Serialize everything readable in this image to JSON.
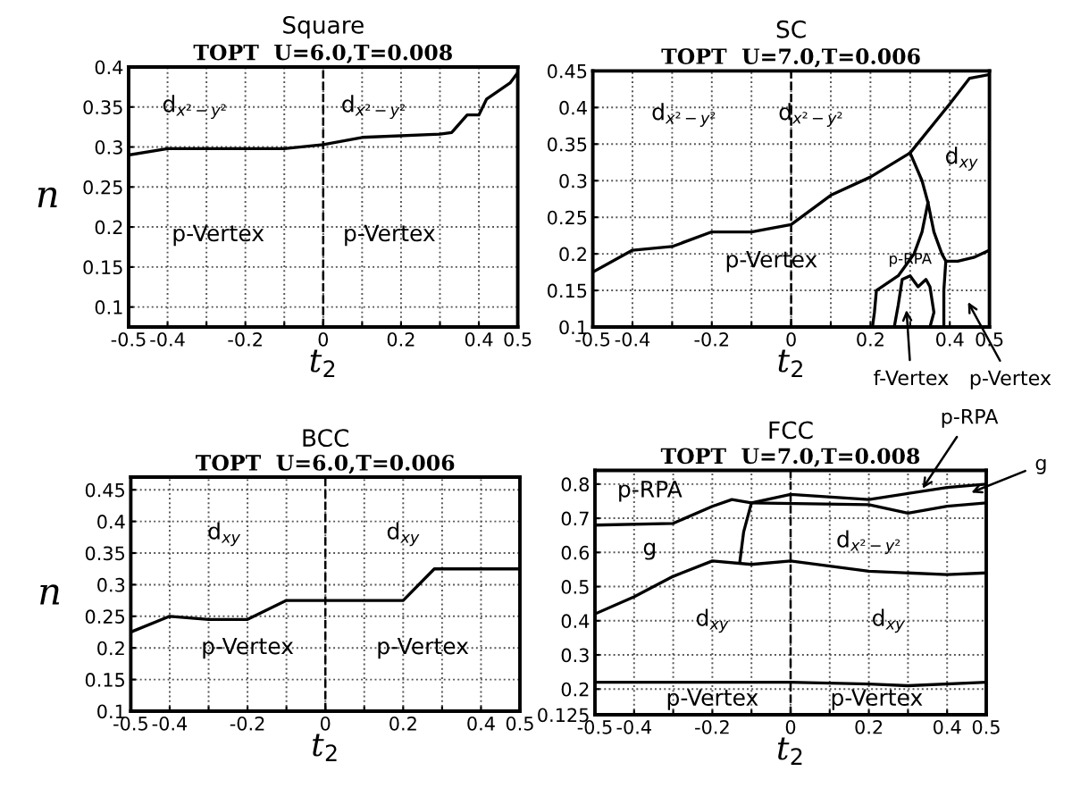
{
  "chart_data": [
    {
      "type": "line",
      "title": "Square",
      "subtitle": "TOPT  U=6.0,T=0.008",
      "xlabel": "t$_{2}$",
      "ylabel": "n",
      "xlim": [
        -0.5,
        0.5
      ],
      "ylim": [
        0.075,
        0.4
      ],
      "xticks": [
        -0.5,
        -0.4,
        {
          "value": -0.3,
          "label": null
        },
        -0.2,
        {
          "value": -0.1,
          "label": null
        },
        0,
        {
          "value": 0.1,
          "label": null
        },
        0.2,
        {
          "value": 0.3,
          "label": null
        },
        0.4,
        0.5
      ],
      "yticks": [
        0.1,
        0.15,
        0.2,
        0.25,
        0.3,
        0.35,
        0.4
      ],
      "grid": true,
      "marker": "none",
      "line_style": "solid",
      "ref_lines": [
        {
          "axis": "x",
          "value": 0,
          "color": "#000000",
          "line_style": "dashed"
        }
      ],
      "series": [
        {
          "color": "#000000",
          "x": [
            -0.5,
            -0.4,
            -0.1,
            0,
            0.1,
            0.3,
            0.33,
            0.37,
            0.4,
            0.42,
            0.45,
            0.48,
            0.5
          ],
          "values": [
            0.29,
            0.298,
            0.298,
            0.303,
            0.312,
            0.316,
            0.318,
            0.34,
            0.34,
            0.36,
            0.37,
            0.38,
            0.393
          ]
        }
      ],
      "annotations": [
        "d$_{x²−y²}$",
        "d$_{x²−y²}$",
        "p-Vertex",
        "p-Vertex"
      ]
    },
    {
      "type": "line",
      "title": "SC",
      "subtitle": "TOPT  U=7.0,T=0.006",
      "xlabel": "t$_{2}$",
      "xlim": [
        -0.5,
        0.5
      ],
      "ylim": [
        0.1,
        0.45
      ],
      "xticks": [
        -0.5,
        -0.4,
        {
          "value": -0.3,
          "label": null
        },
        -0.2,
        {
          "value": -0.1,
          "label": null
        },
        0,
        {
          "value": 0.1,
          "label": null
        },
        0.2,
        {
          "value": 0.3,
          "label": null
        },
        0.4,
        0.5
      ],
      "yticks": [
        0.1,
        0.15,
        0.2,
        0.25,
        0.3,
        0.35,
        0.4,
        0.45
      ],
      "grid": true,
      "marker": "none",
      "line_style": "solid",
      "ref_lines": [
        {
          "axis": "x",
          "value": 0,
          "color": "#000000",
          "line_style": "dashed"
        }
      ],
      "series": [
        {
          "color": "#000000",
          "x": [
            -0.5,
            -0.4,
            -0.3,
            -0.2,
            -0.1,
            0,
            0.1,
            0.2,
            0.3,
            0.4,
            0.45,
            0.5
          ],
          "values": [
            0.175,
            0.205,
            0.21,
            0.23,
            0.23,
            0.24,
            0.28,
            0.305,
            0.338,
            0.405,
            0.44,
            0.445
          ]
        },
        {
          "color": "#000000",
          "x": [
            0.3,
            0.33,
            0.345,
            0.36,
            0.38,
            0.39,
            0.42,
            0.46,
            0.5
          ],
          "values": [
            0.338,
            0.3,
            0.27,
            0.23,
            0.2,
            0.19,
            0.19,
            0.195,
            0.205
          ]
        },
        {
          "color": "#000000",
          "x": [
            0.345,
            0.33,
            0.31,
            0.27,
            0.215,
            0.21,
            0.205
          ],
          "values": [
            0.27,
            0.23,
            0.2,
            0.17,
            0.15,
            0.12,
            0.1
          ]
        },
        {
          "color": "#000000",
          "x": [
            0.26,
            0.27,
            0.28,
            0.3,
            0.32,
            0.34,
            0.35,
            0.36,
            0.35
          ],
          "values": [
            0.1,
            0.13,
            0.165,
            0.17,
            0.155,
            0.165,
            0.155,
            0.12,
            0.1
          ]
        },
        {
          "color": "#000000",
          "x": [
            0.39,
            0.385,
            0.385
          ],
          "values": [
            0.19,
            0.15,
            0.1
          ]
        }
      ],
      "annotations": [
        "d$_{x²−y²}$",
        "d$_{x²−y²}$",
        "d$_{xy}$",
        "p-Vertex",
        "p-RPA",
        "f-Vertex",
        "p-Vertex"
      ]
    },
    {
      "type": "line",
      "title": "BCC",
      "subtitle": "TOPT  U=6.0,T=0.006",
      "xlabel": "t$_{2}$",
      "ylabel": "n",
      "xlim": [
        -0.5,
        0.5
      ],
      "ylim": [
        0.1,
        0.47
      ],
      "xticks": [
        -0.5,
        -0.4,
        {
          "value": -0.3,
          "label": null
        },
        -0.2,
        {
          "value": -0.1,
          "label": null
        },
        0,
        {
          "value": 0.1,
          "label": null
        },
        0.2,
        {
          "value": 0.3,
          "label": null
        },
        0.4,
        0.5
      ],
      "yticks": [
        0.1,
        0.15,
        0.2,
        0.25,
        0.3,
        0.35,
        0.4,
        0.45
      ],
      "grid": true,
      "marker": "none",
      "line_style": "solid",
      "ref_lines": [
        {
          "axis": "x",
          "value": 0,
          "color": "#000000",
          "line_style": "dashed"
        }
      ],
      "series": [
        {
          "color": "#000000",
          "x": [
            -0.5,
            -0.4,
            -0.3,
            -0.2,
            -0.1,
            0.2,
            0.28,
            0.5
          ],
          "values": [
            0.225,
            0.25,
            0.245,
            0.245,
            0.275,
            0.275,
            0.325,
            0.325
          ]
        }
      ],
      "annotations": [
        "d$_{xy}$",
        "d$_{xy}$",
        "p-Vertex",
        "p-Vertex"
      ]
    },
    {
      "type": "line",
      "title": "FCC",
      "subtitle": "TOPT  U=7.0,T=0.008",
      "xlabel": "t$_{2}$",
      "xlim": [
        -0.5,
        0.5
      ],
      "ylim": [
        0.125,
        0.84
      ],
      "xticks": [
        -0.5,
        -0.4,
        {
          "value": -0.3,
          "label": null
        },
        -0.2,
        {
          "value": -0.1,
          "label": null
        },
        0,
        {
          "value": 0.1,
          "label": null
        },
        0.2,
        {
          "value": 0.3,
          "label": null
        },
        0.4,
        0.5
      ],
      "yticks": [
        0.125,
        0.2,
        0.3,
        0.4,
        0.5,
        0.6,
        0.7,
        0.8
      ],
      "grid": true,
      "marker": "none",
      "line_style": "solid",
      "ref_lines": [
        {
          "axis": "x",
          "value": 0,
          "color": "#000000",
          "line_style": "dashed"
        }
      ],
      "series": [
        {
          "color": "#000000",
          "x": [
            -0.5,
            0,
            0.2,
            0.3,
            0.5
          ],
          "values": [
            0.22,
            0.22,
            0.215,
            0.21,
            0.22
          ]
        },
        {
          "color": "#000000",
          "x": [
            -0.5,
            -0.4,
            -0.3,
            -0.2,
            -0.1,
            0,
            0.2,
            0.4,
            0.5
          ],
          "values": [
            0.42,
            0.47,
            0.53,
            0.575,
            0.565,
            0.575,
            0.545,
            0.535,
            0.54
          ]
        },
        {
          "color": "#000000",
          "x": [
            -0.5,
            -0.3,
            -0.2,
            -0.15,
            -0.1,
            0,
            0.2,
            0.4,
            0.5
          ],
          "values": [
            0.68,
            0.685,
            0.735,
            0.755,
            0.745,
            0.77,
            0.755,
            0.79,
            0.8
          ]
        },
        {
          "color": "#000000",
          "x": [
            -0.1,
            0.2,
            0.3,
            0.4,
            0.5
          ],
          "values": [
            0.745,
            0.74,
            0.715,
            0.735,
            0.745
          ]
        },
        {
          "color": "#000000",
          "x": [
            -0.1,
            -0.12,
            -0.13
          ],
          "values": [
            0.745,
            0.66,
            0.57
          ]
        }
      ],
      "annotations": [
        "p-RPA",
        "g",
        "d$_{x²−y²}$",
        "d$_{xy}$",
        "d$_{xy}$",
        "p-Vertex",
        "p-Vertex",
        {
          "text": "p-RPA",
          "x": 0.33,
          "y": 0.775
        },
        {
          "text": "g",
          "x": 0.45,
          "y": 0.77
        }
      ]
    }
  ]
}
